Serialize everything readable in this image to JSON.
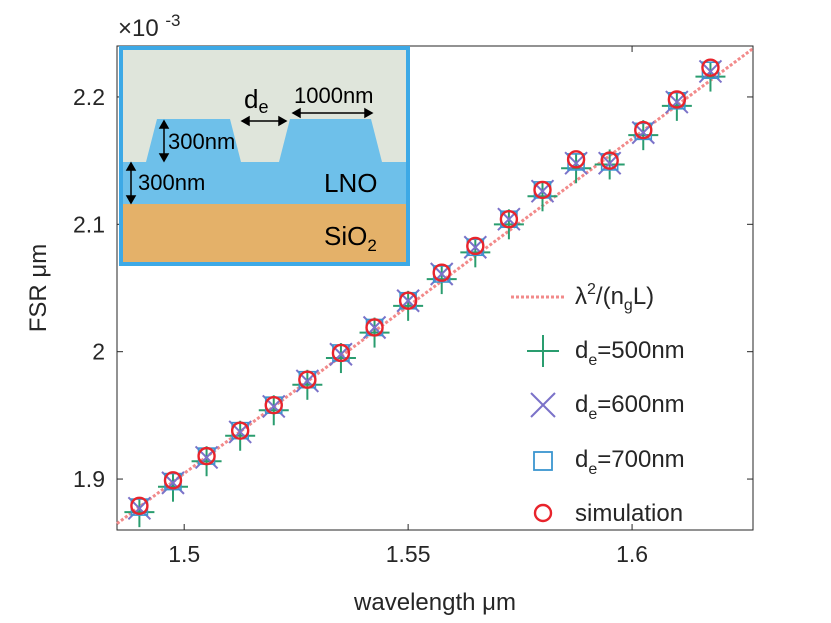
{
  "chart_data": {
    "type": "scatter",
    "xlabel": "wavelength μm",
    "ylabel": "FSR μm",
    "exponent_label": "×10-3",
    "xlim": [
      1.485,
      1.627
    ],
    "ylim": [
      1.86,
      2.24
    ],
    "x_ticks": [
      "1.5",
      "1.55",
      "1.6"
    ],
    "y_ticks": [
      "1.9",
      "2",
      "2.1",
      "2.2"
    ],
    "x": [
      1.49,
      1.4975,
      1.505,
      1.5125,
      1.52,
      1.5275,
      1.535,
      1.5425,
      1.55,
      1.5575,
      1.565,
      1.5725,
      1.58,
      1.5875,
      1.595,
      1.6025,
      1.61,
      1.6175
    ],
    "series": [
      {
        "name": "λ²/(n_gL)",
        "kind": "fit-line",
        "line_start": [
          1.485,
          1.865
        ],
        "line_end": [
          1.627,
          2.238
        ]
      },
      {
        "name": "d_e=500nm",
        "marker": "plus",
        "color": "#2a9d6f",
        "values": [
          1.874,
          1.894,
          1.914,
          1.934,
          1.954,
          1.974,
          1.995,
          2.015,
          2.036,
          2.057,
          2.078,
          2.1,
          2.122,
          2.144,
          2.147,
          2.17,
          2.193,
          2.216
        ]
      },
      {
        "name": "d_e=600nm",
        "marker": "x",
        "color": "#7b72c9",
        "values": [
          1.877,
          1.897,
          1.917,
          1.937,
          1.957,
          1.977,
          1.998,
          2.019,
          2.04,
          2.061,
          2.082,
          2.104,
          2.126,
          2.148,
          2.148,
          2.172,
          2.196,
          2.22
        ]
      },
      {
        "name": "d_e=700nm",
        "marker": "square",
        "color": "#3b95cf",
        "values": [
          1.878,
          1.898,
          1.918,
          1.938,
          1.958,
          1.978,
          1.999,
          2.019,
          2.04,
          2.061,
          2.082,
          2.104,
          2.127,
          2.149,
          2.149,
          2.173,
          2.197,
          2.221
        ]
      },
      {
        "name": "simulation",
        "marker": "circle",
        "color": "#e8242c",
        "values": [
          1.879,
          1.899,
          1.918,
          1.938,
          1.958,
          1.978,
          1.999,
          2.019,
          2.04,
          2.062,
          2.083,
          2.104,
          2.127,
          2.151,
          2.15,
          2.174,
          2.198,
          2.223
        ]
      }
    ],
    "legend": {
      "placement": "bottom-right",
      "fit_label": "λ",
      "fit_sup": "2",
      "fit_mid": "/(n",
      "fit_sub": "g",
      "fit_end": "L)",
      "items": [
        {
          "prefix": "d",
          "sub": "e",
          "suffix": "=500nm"
        },
        {
          "prefix": "d",
          "sub": "e",
          "suffix": "=600nm"
        },
        {
          "prefix": "d",
          "sub": "e",
          "suffix": "=700nm"
        },
        {
          "prefix": "simulation",
          "sub": "",
          "suffix": ""
        }
      ]
    },
    "inset": {
      "de_label": "d",
      "de_sub": "e",
      "width_label": "1000nm",
      "ridge_height_label": "300nm",
      "slab_height_label": "300nm",
      "lno_label": "LNO",
      "sio2_label": "SiO",
      "sio2_sub": "2",
      "colors": {
        "cladding": "#dfe5db",
        "lno": "#6ec0ea",
        "sio2": "#e4b169",
        "border": "#3da9e6"
      }
    }
  }
}
